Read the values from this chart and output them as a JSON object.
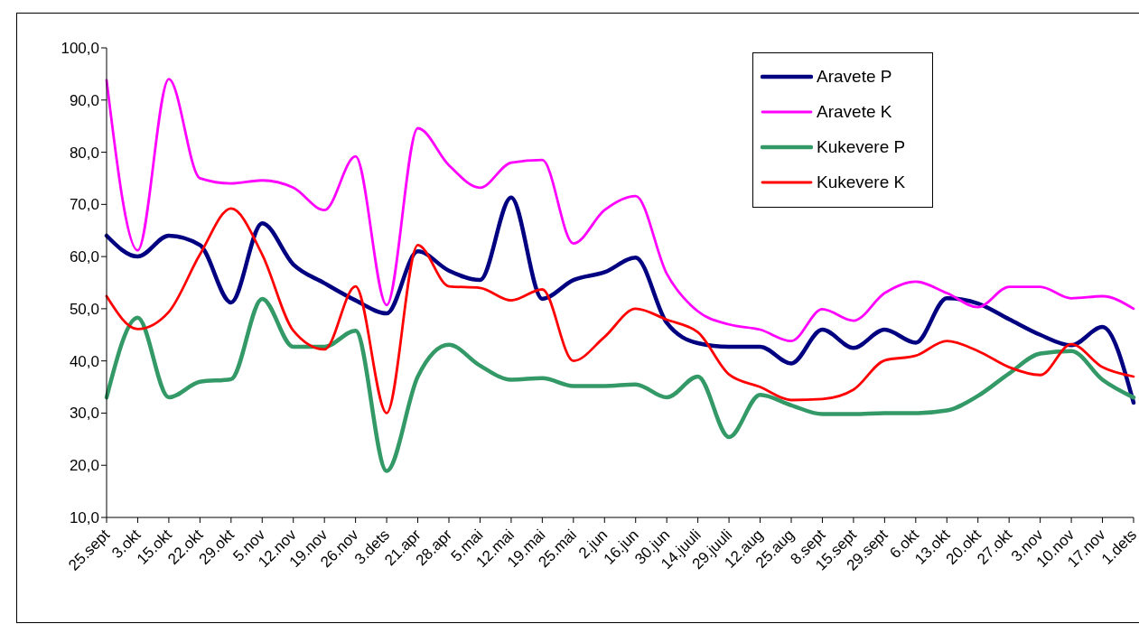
{
  "chart_data": {
    "type": "line",
    "categories": [
      "25.sept",
      "3.okt",
      "15.okt",
      "22.okt",
      "29.okt",
      "5.nov",
      "12.nov",
      "19.nov",
      "26.nov",
      "3.dets",
      "21.apr",
      "28.apr",
      "5.mai",
      "12.mai",
      "19.mai",
      "25.mai",
      "2.jun",
      "16.jun",
      "30.jun",
      "14.juuli",
      "29.juuli",
      "12.aug",
      "25.aug",
      "8.sept",
      "15.sept",
      "29.sept",
      "6.okt",
      "13.okt",
      "20.okt",
      "27.okt",
      "3.nov",
      "10.nov",
      "17.nov",
      "1.dets"
    ],
    "series": [
      {
        "name": "Aravete P",
        "color": "#000080",
        "values": [
          64,
          60,
          64,
          62.2,
          51.2,
          66.4,
          58.5,
          54.9,
          51.6,
          49.1,
          61,
          57.3,
          55.5,
          71.3,
          51.9,
          55.5,
          57,
          59.8,
          47.3,
          43.4,
          42.7,
          42.7,
          39.5,
          46,
          42.5,
          46,
          43.5,
          52,
          51,
          48,
          45,
          43,
          46.5,
          32
        ]
      },
      {
        "name": "Aravete K",
        "color": "#ff00ff",
        "values": [
          93.8,
          61.2,
          94,
          75,
          74,
          74.6,
          73.2,
          68.9,
          79.2,
          50.7,
          84.6,
          77.5,
          73.2,
          78,
          78.5,
          62.5,
          68.9,
          71.6,
          56.7,
          49.5,
          47,
          46,
          43.8,
          49.9,
          47.7,
          53,
          55.2,
          53,
          50.3,
          54.2,
          54.2,
          52,
          52.4,
          50
        ]
      },
      {
        "name": "Kukevere P",
        "color": "#339966",
        "values": [
          33,
          48.3,
          33,
          36,
          36.5,
          51.9,
          42.7,
          42.7,
          45.8,
          18.9,
          37,
          43.1,
          39.1,
          36.4,
          36.7,
          35.2,
          35.2,
          35.5,
          33,
          37,
          25.4,
          33.5,
          31.5,
          29.8,
          29.8,
          30,
          30,
          30.5,
          33.3,
          37.6,
          41.4,
          41.9,
          36.4,
          33
        ]
      },
      {
        "name": "Kukevere K",
        "color": "#ff0000",
        "values": [
          52.4,
          46.1,
          49.4,
          60.4,
          69.2,
          60.4,
          45.8,
          42.2,
          54.3,
          30,
          62.2,
          54.3,
          54,
          51.6,
          53.7,
          40,
          44.6,
          50,
          47.9,
          45.5,
          37.4,
          35,
          32.5,
          32.7,
          34.5,
          40.1,
          41,
          43.8,
          41.9,
          38.8,
          37.3,
          43.2,
          38.8,
          37
        ]
      }
    ],
    "ylim": [
      10,
      100
    ],
    "yticks": [
      {
        "value": 10,
        "label": "10,0"
      },
      {
        "value": 20,
        "label": "20,0"
      },
      {
        "value": 30,
        "label": "30,0"
      },
      {
        "value": 40,
        "label": "40,0"
      },
      {
        "value": 50,
        "label": "50,0"
      },
      {
        "value": 60,
        "label": "60,0"
      },
      {
        "value": 70,
        "label": "70,0"
      },
      {
        "value": 80,
        "label": "80,0"
      },
      {
        "value": 90,
        "label": "90,0"
      },
      {
        "value": 100,
        "label": "100,0"
      }
    ],
    "grid": false,
    "legend": "top right",
    "marker": "none",
    "line_style": "solid"
  }
}
